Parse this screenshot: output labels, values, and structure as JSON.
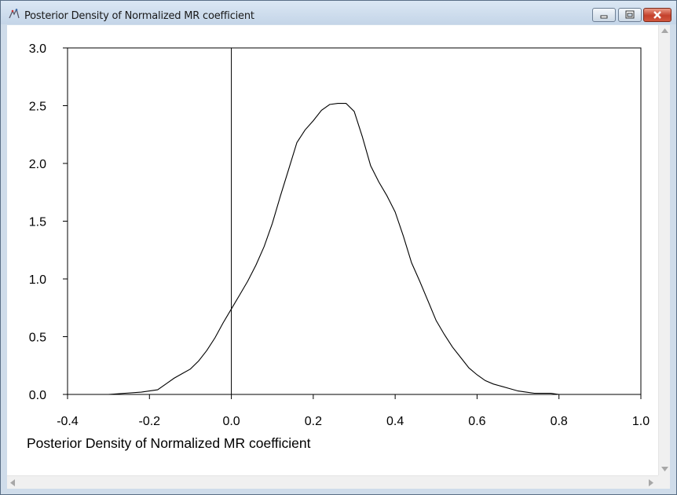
{
  "window": {
    "title": "Posterior Density of Normalized MR coefficient"
  },
  "icons": {
    "app": "app-icon",
    "minimize": "minimize-icon",
    "maximize": "maximize-icon",
    "close": "close-icon",
    "scroll_up": "scroll-up-arrow-icon",
    "scroll_down": "scroll-down-arrow-icon",
    "scroll_left": "scroll-left-arrow-icon",
    "scroll_right": "scroll-right-arrow-icon"
  },
  "colors": {
    "close_button": "#c4412c",
    "curve": "#000000"
  },
  "chart_data": {
    "type": "line",
    "title": "",
    "xlabel": "Posterior Density of Normalized MR coefficient",
    "ylabel": "",
    "xlim": [
      -0.4,
      1.0
    ],
    "ylim": [
      0.0,
      3.0
    ],
    "x_ticks": [
      "-0.4",
      "-0.2",
      "0.0",
      "0.2",
      "0.4",
      "0.6",
      "0.8",
      "1.0"
    ],
    "y_ticks": [
      "0.0",
      "0.5",
      "1.0",
      "1.5",
      "2.0",
      "2.5",
      "3.0"
    ],
    "reference_line_x": 0.0,
    "grid": false,
    "series": [
      {
        "x": [
          -0.3,
          -0.26,
          -0.22,
          -0.2,
          -0.18,
          -0.16,
          -0.14,
          -0.12,
          -0.1,
          -0.08,
          -0.06,
          -0.04,
          -0.02,
          0.0,
          0.02,
          0.04,
          0.06,
          0.08,
          0.1,
          0.12,
          0.14,
          0.16,
          0.18,
          0.2,
          0.22,
          0.24,
          0.26,
          0.28,
          0.3,
          0.32,
          0.34,
          0.36,
          0.38,
          0.4,
          0.42,
          0.44,
          0.46,
          0.48,
          0.5,
          0.52,
          0.54,
          0.56,
          0.58,
          0.6,
          0.62,
          0.64,
          0.66,
          0.68,
          0.7,
          0.72,
          0.74,
          0.76,
          0.78,
          0.8,
          0.82,
          0.84
        ],
        "y": [
          0.0,
          0.01,
          0.02,
          0.03,
          0.04,
          0.09,
          0.14,
          0.18,
          0.22,
          0.29,
          0.38,
          0.49,
          0.62,
          0.74,
          0.86,
          0.98,
          1.12,
          1.28,
          1.48,
          1.72,
          1.95,
          2.18,
          2.29,
          2.37,
          2.46,
          2.51,
          2.52,
          2.52,
          2.45,
          2.23,
          1.98,
          1.84,
          1.72,
          1.58,
          1.37,
          1.14,
          0.98,
          0.81,
          0.64,
          0.52,
          0.41,
          0.32,
          0.23,
          0.17,
          0.12,
          0.09,
          0.07,
          0.05,
          0.03,
          0.02,
          0.01,
          0.01,
          0.01,
          0.0,
          0.0,
          0.0
        ]
      }
    ]
  }
}
